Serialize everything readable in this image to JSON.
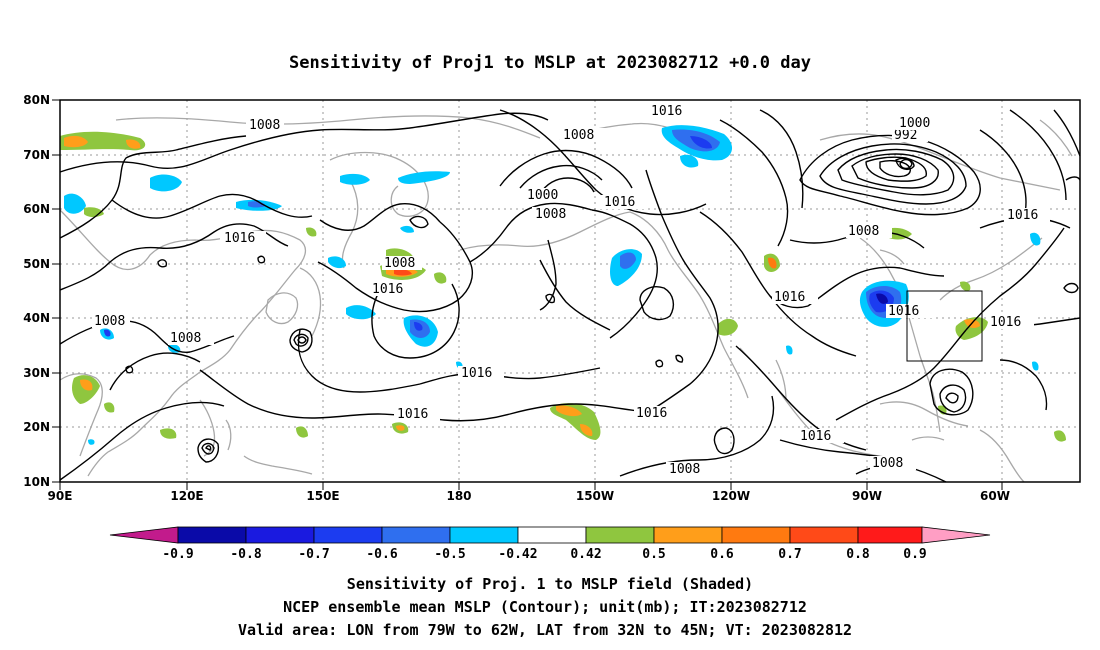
{
  "title": "Sensitivity of Proj1 to MSLP at 2023082712 +0.0 day",
  "axes": {
    "lat_labels": [
      "80N",
      "70N",
      "60N",
      "50N",
      "40N",
      "30N",
      "20N",
      "10N"
    ],
    "lon_labels": [
      "90E",
      "120E",
      "150E",
      "180",
      "150W",
      "120W",
      "90W",
      "60W"
    ]
  },
  "colorbar": {
    "labels": [
      "-0.9",
      "-0.8",
      "-0.7",
      "-0.6",
      "-0.5",
      "-0.42",
      "0.42",
      "0.5",
      "0.6",
      "0.7",
      "0.8",
      "0.9"
    ],
    "colors": [
      "#c21b8c",
      "#0a0aa8",
      "#1a1ae0",
      "#1c3cf0",
      "#2f6fef",
      "#3aa0f5",
      "#00c8ff",
      "#ffffff",
      "#8fc63f",
      "#ff9e1a",
      "#ff7a10",
      "#ff4a18",
      "#ff1a1a",
      "#ff9ec4"
    ]
  },
  "contour_labels": [
    "1008",
    "1008",
    "1016",
    "1016",
    "1008",
    "1000",
    "992",
    "1016",
    "1016",
    "1008",
    "1000",
    "1008",
    "1016",
    "1016",
    "1008",
    "1016",
    "1016",
    "1016",
    "1016",
    "1008",
    "1016",
    "1016",
    "1008",
    "1008",
    "1008",
    "1016",
    "1016"
  ],
  "caption": {
    "line1": "Sensitivity of Proj. 1 to MSLP field (Shaded)",
    "line2": "NCEP ensemble mean MSLP (Contour); unit(mb); IT:2023082712",
    "line3": "Valid area: LON from 79W to 62W, LAT from 32N to 45N; VT: 2023082812"
  }
}
